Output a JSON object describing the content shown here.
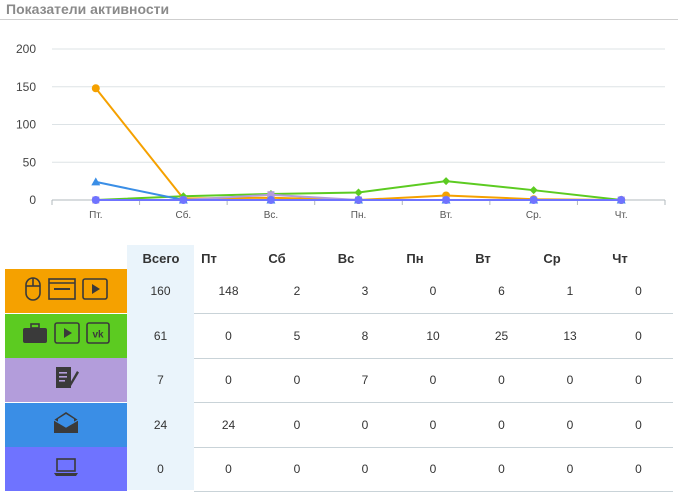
{
  "title": "Показатели активности",
  "colors": {
    "orange": "#f5a100",
    "green": "#5ccb21",
    "purple": "#b39ddb",
    "blue": "#3a8ee6",
    "indigo": "#6f73ff"
  },
  "chart_data": {
    "type": "line",
    "categories": [
      "Пт.",
      "Сб.",
      "Вс.",
      "Пн.",
      "Вт.",
      "Ср.",
      "Чт."
    ],
    "ylim": [
      0,
      200
    ],
    "yticks": [
      0,
      50,
      100,
      150,
      200
    ],
    "grid": true,
    "series": [
      {
        "color": "#f5a100",
        "marker": "circle",
        "values": [
          148,
          2,
          3,
          0,
          6,
          1,
          0
        ]
      },
      {
        "color": "#5ccb21",
        "marker": "diamond",
        "values": [
          0,
          5,
          8,
          10,
          25,
          13,
          0
        ]
      },
      {
        "color": "#b39ddb",
        "marker": "square",
        "values": [
          0,
          0,
          7,
          0,
          0,
          0,
          0
        ]
      },
      {
        "color": "#3a8ee6",
        "marker": "triangle",
        "values": [
          24,
          0,
          0,
          0,
          0,
          0,
          0
        ]
      },
      {
        "color": "#6f73ff",
        "marker": "circle",
        "values": [
          0,
          0,
          0,
          0,
          0,
          0,
          0
        ]
      }
    ]
  },
  "table": {
    "headers": [
      "Всего",
      "Пт",
      "Сб",
      "Вс",
      "Пн",
      "Вт",
      "Ср",
      "Чт"
    ],
    "rows": [
      {
        "color": "#f5a100",
        "icons": [
          "mouse-icon",
          "browser-icon",
          "video-play-icon"
        ],
        "cells": [
          "160",
          "148",
          "2",
          "3",
          "0",
          "6",
          "1",
          "0"
        ]
      },
      {
        "color": "#5ccb21",
        "icons": [
          "briefcase-icon",
          "video-play-icon",
          "vk-icon"
        ],
        "cells": [
          "61",
          "0",
          "5",
          "8",
          "10",
          "25",
          "13",
          "0"
        ]
      },
      {
        "color": "#b39ddb",
        "icons": [
          "document-edit-icon"
        ],
        "cells": [
          "7",
          "0",
          "0",
          "7",
          "0",
          "0",
          "0",
          "0"
        ]
      },
      {
        "color": "#3a8ee6",
        "icons": [
          "open-envelope-icon"
        ],
        "cells": [
          "24",
          "24",
          "0",
          "0",
          "0",
          "0",
          "0",
          "0"
        ]
      },
      {
        "color": "#6f73ff",
        "icons": [
          "laptop-icon"
        ],
        "cells": [
          "0",
          "0",
          "0",
          "0",
          "0",
          "0",
          "0",
          "0"
        ]
      }
    ]
  }
}
